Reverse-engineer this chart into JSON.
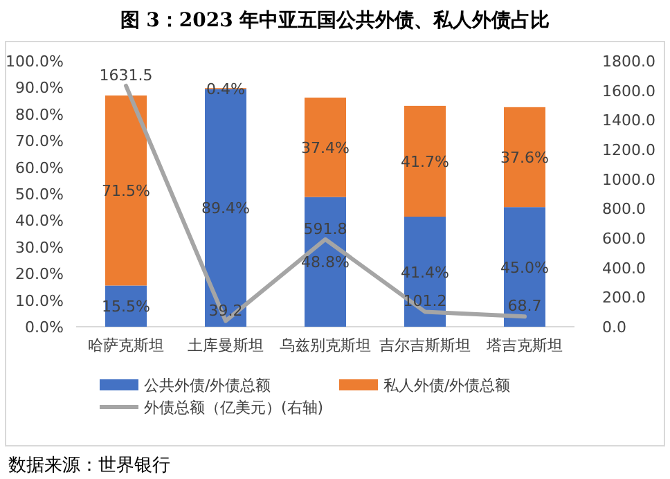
{
  "chart_data": {
    "type": "bar",
    "stacked": true,
    "title": "图 3：2023 年中亚五国公共外债、私人外债占比",
    "categories": [
      "哈萨克斯坦",
      "土库曼斯坦",
      "乌兹别克斯坦",
      "吉尔吉斯斯坦",
      "塔吉克斯坦"
    ],
    "series": [
      {
        "name": "公共外债/外债总额",
        "color": "#4472c4",
        "values": [
          15.5,
          89.4,
          48.8,
          41.4,
          45.0
        ],
        "value_labels": [
          "15.5%",
          "89.4%",
          "48.8%",
          "41.4%",
          "45.0%"
        ]
      },
      {
        "name": "私人外债/外债总额",
        "color": "#ed7d31",
        "values": [
          71.5,
          0.4,
          37.4,
          41.7,
          37.6
        ],
        "value_labels": [
          "71.5%",
          "0.4%",
          "37.4%",
          "41.7%",
          "37.6%"
        ]
      },
      {
        "name": "外债总额（亿美元）(右轴)",
        "type": "line",
        "axis": "y2",
        "color": "#a5a5a5",
        "values": [
          1631.5,
          39.2,
          591.8,
          101.2,
          68.7
        ],
        "value_labels": [
          "1631.5",
          "39.2",
          "591.8",
          "101.2",
          "68.7"
        ]
      }
    ],
    "ylim": [
      0,
      100
    ],
    "yticks": [
      {
        "value": 0,
        "label": "0.0%"
      },
      {
        "value": 10,
        "label": "10.0%"
      },
      {
        "value": 20,
        "label": "20.0%"
      },
      {
        "value": 30,
        "label": "30.0%"
      },
      {
        "value": 40,
        "label": "40.0%"
      },
      {
        "value": 50,
        "label": "50.0%"
      },
      {
        "value": 60,
        "label": "60.0%"
      },
      {
        "value": 70,
        "label": "70.0%"
      },
      {
        "value": 80,
        "label": "80.0%"
      },
      {
        "value": 90,
        "label": "90.0%"
      },
      {
        "value": 100,
        "label": "100.0%"
      }
    ],
    "y2lim": [
      0,
      1800
    ],
    "y2ticks": [
      {
        "value": 0,
        "label": "0.0"
      },
      {
        "value": 200,
        "label": "200.0"
      },
      {
        "value": 400,
        "label": "400.0"
      },
      {
        "value": 600,
        "label": "600.0"
      },
      {
        "value": 800,
        "label": "800.0"
      },
      {
        "value": 1000,
        "label": "1000.0"
      },
      {
        "value": 1200,
        "label": "1200.0"
      },
      {
        "value": 1400,
        "label": "1400.0"
      },
      {
        "value": 1600,
        "label": "1600.0"
      },
      {
        "value": 1800,
        "label": "1800.0"
      }
    ],
    "legend": "bottom",
    "grid": false,
    "annotations": [
      "数据来源：世界银行"
    ]
  }
}
